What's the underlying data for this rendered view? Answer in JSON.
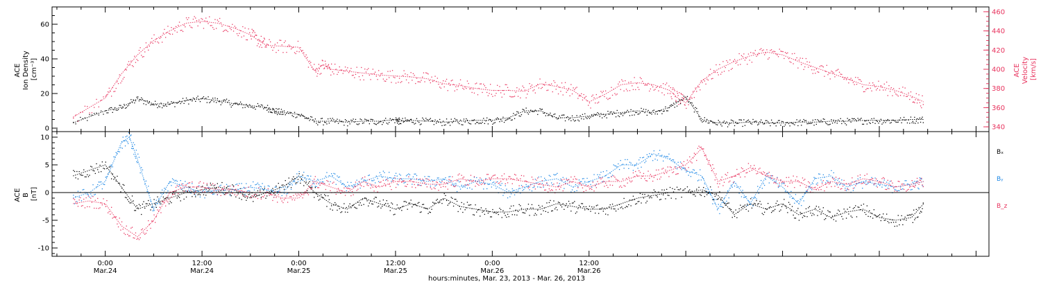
{
  "chart_data": [
    {
      "type": "scatter",
      "panel": "top",
      "ylabel_lines": [
        "ACE",
        "Ion Density",
        "[cm⁻³]"
      ],
      "y2label_lines": [
        "ACE",
        "Velocity",
        "[km/s]"
      ],
      "ylim": [
        -2,
        70
      ],
      "y2lim": [
        335,
        465
      ],
      "yticks": [
        "0",
        "20",
        "40",
        "60"
      ],
      "y2ticks": [
        "340",
        "360",
        "380",
        "400",
        "420",
        "440",
        "460"
      ],
      "series": [
        {
          "color": "#000000",
          "axis": "left",
          "x": [
            -4,
            0,
            2,
            4,
            6,
            8,
            10,
            12,
            14,
            16,
            18,
            20,
            21,
            22,
            24,
            26,
            28,
            30,
            32,
            34,
            36,
            36.5,
            38,
            40,
            42,
            44,
            46,
            48,
            50,
            52,
            54,
            56,
            58,
            60,
            62,
            64,
            66,
            68,
            70,
            72,
            74,
            76,
            78,
            80,
            82,
            84,
            86,
            88,
            90,
            92,
            94,
            96,
            98,
            100,
            101.5
          ],
          "y": [
            3,
            10,
            12,
            17,
            14,
            14,
            16,
            17,
            16,
            14,
            13,
            12,
            10,
            9,
            8,
            4,
            4,
            3.5,
            4,
            4,
            5,
            4,
            4.5,
            4,
            3.5,
            4,
            4.5,
            4.5,
            6,
            10,
            10,
            6,
            6,
            7,
            8,
            9,
            10,
            9,
            12,
            18,
            5,
            3,
            3,
            3.5,
            3,
            3,
            3.5,
            3.5,
            4,
            4,
            4.5,
            4.5,
            4.5,
            5,
            5
          ]
        },
        {
          "color": "#e8335e",
          "axis": "right",
          "x": [
            -4,
            0,
            2,
            4,
            6,
            8,
            10,
            12,
            14,
            16,
            18,
            19,
            20,
            22,
            24,
            26,
            27,
            28,
            30,
            32,
            34,
            36,
            38,
            40,
            42,
            44,
            46,
            48,
            50,
            52,
            54,
            56,
            58,
            60,
            62,
            64,
            66,
            68,
            70,
            71,
            72,
            74,
            76,
            78,
            80,
            82,
            84,
            86,
            88,
            90,
            92,
            94,
            96,
            98,
            100,
            101.5
          ],
          "y": [
            350,
            370,
            395,
            415,
            430,
            440,
            448,
            450,
            448,
            443,
            436,
            430,
            425,
            424,
            423,
            398,
            405,
            400,
            398,
            396,
            394,
            393,
            392,
            390,
            385,
            383,
            380,
            378,
            378,
            377,
            385,
            382,
            378,
            366,
            374,
            384,
            386,
            384,
            378,
            370,
            365,
            388,
            400,
            408,
            414,
            418,
            415,
            408,
            402,
            396,
            390,
            384,
            382,
            378,
            372,
            366
          ]
        }
      ]
    },
    {
      "type": "scatter",
      "panel": "bottom",
      "ylabel_lines": [
        "ACE",
        "B",
        "[nT]"
      ],
      "ylim": [
        -11.5,
        11
      ],
      "yticks": [
        "-10",
        "-5",
        "0",
        "5",
        "10"
      ],
      "legend": [
        "Bₓ",
        "Bᵧ",
        "B_z"
      ],
      "series": [
        {
          "name": "Bₓ",
          "color": "#000000",
          "x": [
            -4,
            -2,
            0,
            2,
            4,
            6,
            8,
            10,
            12,
            14,
            16,
            18,
            20,
            22,
            24,
            26,
            28,
            30,
            32,
            34,
            36,
            38,
            40,
            42,
            44,
            46,
            48,
            50,
            52,
            54,
            56,
            58,
            60,
            62,
            64,
            66,
            68,
            70,
            72,
            74,
            76,
            78,
            80,
            82,
            84,
            86,
            88,
            90,
            92,
            94,
            96,
            98,
            100,
            101.5
          ],
          "y": [
            3,
            4,
            5,
            1,
            -3,
            -2,
            -1,
            0,
            0.5,
            1,
            0.5,
            -1,
            0,
            1,
            3,
            0,
            -2,
            -3,
            -1,
            -2,
            -3,
            -2,
            -3,
            -1,
            -2.5,
            -3,
            -3.5,
            -3.5,
            -3,
            -3,
            -2,
            -2.5,
            -3,
            -3,
            -2,
            -1,
            -0.5,
            0,
            0,
            0.5,
            -0.5,
            -4,
            -2,
            -3,
            -2,
            -4,
            -3,
            -4.5,
            -3.5,
            -3,
            -4.5,
            -5,
            -4.5,
            -2
          ]
        },
        {
          "name": "Bᵧ",
          "color": "#1e88e5",
          "x": [
            -4,
            -2,
            0,
            2,
            3,
            4,
            6,
            8,
            10,
            12,
            14,
            16,
            18,
            20,
            22,
            24,
            26,
            28,
            30,
            32,
            34,
            36,
            38,
            40,
            42,
            44,
            46,
            48,
            50,
            52,
            54,
            56,
            58,
            60,
            62,
            64,
            66,
            68,
            70,
            72,
            74,
            76,
            78,
            80,
            82,
            84,
            86,
            88,
            90,
            92,
            94,
            96,
            98,
            100,
            101.5
          ],
          "y": [
            -1,
            0,
            2,
            9,
            10,
            6,
            -3,
            2,
            1,
            0,
            0.5,
            0.5,
            1,
            0.5,
            0,
            3,
            2,
            3,
            1,
            2,
            3,
            2.5,
            2.5,
            2,
            2.5,
            1,
            2,
            1.5,
            0,
            1,
            2,
            2.5,
            1,
            2,
            3,
            5,
            5,
            7,
            6,
            4,
            3,
            -3,
            2,
            -2,
            3,
            1,
            -2,
            2.5,
            3,
            1,
            2,
            1.5,
            1,
            1.5,
            2
          ]
        },
        {
          "name": "B_z",
          "color": "#e8335e",
          "x": [
            -4,
            -2,
            0,
            2,
            4,
            6,
            8,
            10,
            12,
            14,
            16,
            18,
            20,
            22,
            24,
            26,
            28,
            30,
            32,
            34,
            36,
            38,
            40,
            42,
            44,
            46,
            48,
            50,
            52,
            54,
            56,
            58,
            60,
            62,
            64,
            66,
            68,
            70,
            72,
            74,
            76,
            78,
            80,
            82,
            84,
            86,
            88,
            90,
            92,
            94,
            96,
            98,
            100,
            101.5
          ],
          "y": [
            -2,
            -1.5,
            -2,
            -6,
            -8,
            -5,
            0,
            1,
            1,
            0.5,
            0.5,
            0,
            0,
            -1,
            -1,
            2,
            1,
            0,
            2,
            1,
            2,
            2,
            1.5,
            1.5,
            2.5,
            2,
            2.5,
            2.5,
            2,
            1.5,
            1,
            2,
            1,
            2,
            2,
            3,
            3,
            4,
            5,
            8,
            2,
            3,
            4.5,
            3,
            2,
            2,
            0.5,
            2,
            1.5,
            2.5,
            2,
            1,
            1.5,
            2
          ]
        }
      ]
    }
  ],
  "x_axis": {
    "xlim": [
      -6.6,
      109.6
    ],
    "ticks": [
      {
        "h": 0,
        "time": "0:00",
        "date": "Mar.24"
      },
      {
        "h": 12,
        "time": "12:00",
        "date": "Mar.24"
      },
      {
        "h": 24,
        "time": "0:00",
        "date": "Mar.25"
      },
      {
        "h": 36,
        "time": "12:00",
        "date": "Mar.25"
      },
      {
        "h": 48,
        "time": "0:00",
        "date": "Mar.26"
      },
      {
        "h": 60,
        "time": "12:00",
        "date": "Mar.26"
      }
    ],
    "xlabel": "hours:minutes, Mar. 23, 2013 - Mar. 26, 2013"
  }
}
